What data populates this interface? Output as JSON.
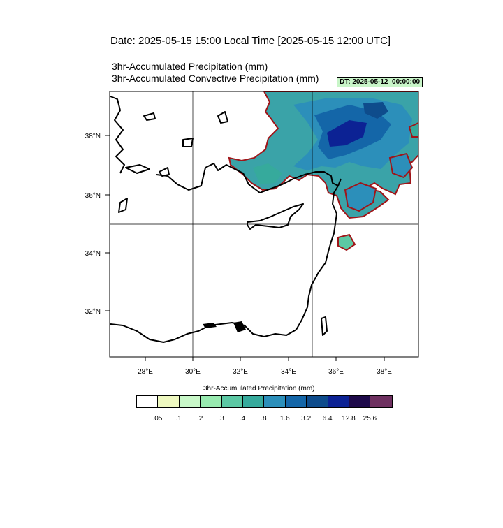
{
  "header": {
    "date_line": "Date: 2025-05-15  15:00 Local Time [2025-05-15  12:00 UTC]",
    "title_line1": "3hr-Accumulated Precipitation   (mm)",
    "title_line2": "3hr-Accumulated Convective Precipitation   (mm)",
    "dt_badge": "DT: 2025-05-12_00:00:00"
  },
  "map": {
    "lat_labels": [
      "38°N",
      "36°N",
      "34°N",
      "32°N"
    ],
    "lon_labels": [
      "28°E",
      "30°E",
      "32°E",
      "34°E",
      "36°E",
      "38°E"
    ],
    "gridlines": "30°E, 35°E, 35°N"
  },
  "colorbar": {
    "title": "3hr-Accumulated Precipitation   (mm)",
    "labels": [
      ".05",
      ".1",
      ".2",
      ".3",
      ".4",
      ".8",
      "1.6",
      "3.2",
      "6.4",
      "12.8",
      "25.6"
    ],
    "colors": [
      "#ffffff",
      "#eef8c0",
      "#c8f7c8",
      "#98eab0",
      "#5cc8a4",
      "#36aa9c",
      "#2c8fba",
      "#1466a8",
      "#0e4c8c",
      "#0c2294",
      "#1e0a4a",
      "#6e3060"
    ]
  },
  "colors": {
    "contour_outline": "#a01418",
    "precip_light": "#5cb8b0",
    "precip_mid": "#2c8fba",
    "precip_heavy": "#0c2294"
  }
}
